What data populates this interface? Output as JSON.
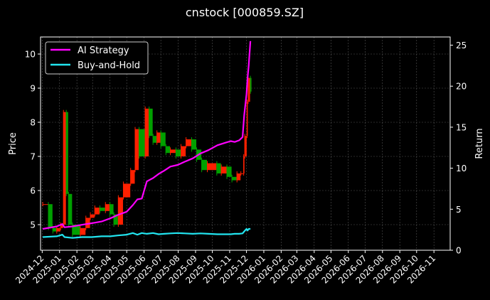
{
  "chart_data": {
    "type": "line",
    "title": "cnstock [000859.SZ]",
    "ylabel_left": "Price",
    "ylabel_right": "Return",
    "y_left_range": [
      4.25,
      10.5
    ],
    "y_right_range": [
      0,
      26
    ],
    "y_left_ticks": [
      5,
      6,
      7,
      8,
      9,
      10
    ],
    "y_right_ticks": [
      0,
      5,
      10,
      15,
      20,
      25
    ],
    "x_range": [
      "2024-11-28",
      "2026-11-30"
    ],
    "x_ticks": [
      "2024-12",
      "2025-01",
      "2025-02",
      "2025-03",
      "2025-04",
      "2025-05",
      "2025-06",
      "2025-07",
      "2025-08",
      "2025-09",
      "2025-10",
      "2025-11",
      "2025-12",
      "2026-01",
      "2026-02",
      "2026-03",
      "2026-04",
      "2026-05",
      "2026-06",
      "2026-07",
      "2026-08",
      "2026-09",
      "2026-10",
      "2026-11"
    ],
    "grid": true,
    "legend": {
      "position": "top-left",
      "entries": [
        "AI Strategy",
        "Buy-and-Hold"
      ]
    },
    "colors": {
      "background": "#000000",
      "ai": "#ff00ff",
      "bh": "#22e5f0",
      "candle_up": "#ff2000",
      "candle_down": "#00a000",
      "grid": "#555555",
      "text": "#ffffff"
    },
    "price_series": {
      "name": "",
      "x": [
        "2024-12-02",
        "2024-12-12",
        "2024-12-20",
        "2024-12-27",
        "2025-01-03",
        "2025-01-08",
        "2025-01-13",
        "2025-01-17",
        "2025-01-24",
        "2025-02-07",
        "2025-02-17",
        "2025-02-25",
        "2025-03-05",
        "2025-03-14",
        "2025-03-24",
        "2025-04-01",
        "2025-04-08",
        "2025-04-16",
        "2025-04-25",
        "2025-05-08",
        "2025-05-16",
        "2025-05-23",
        "2025-06-03",
        "2025-06-10",
        "2025-06-17",
        "2025-06-24",
        "2025-07-01",
        "2025-07-10",
        "2025-07-18",
        "2025-07-28",
        "2025-08-06",
        "2025-08-15",
        "2025-08-25",
        "2025-09-03",
        "2025-09-12",
        "2025-09-22",
        "2025-10-09",
        "2025-10-17",
        "2025-10-27",
        "2025-11-05",
        "2025-11-14",
        "2025-11-21",
        "2025-11-26",
        "2025-11-28",
        "2025-12-02",
        "2025-12-04",
        "2025-12-08"
      ],
      "values": [
        5.6,
        4.9,
        4.8,
        4.9,
        5.0,
        8.3,
        5.9,
        5.0,
        4.7,
        4.9,
        5.2,
        5.3,
        5.5,
        5.4,
        5.6,
        5.3,
        5.0,
        5.8,
        6.2,
        6.6,
        7.8,
        7.0,
        8.4,
        7.6,
        7.4,
        7.7,
        7.3,
        7.1,
        7.2,
        7.0,
        7.3,
        7.5,
        7.2,
        6.9,
        6.6,
        6.8,
        6.5,
        6.7,
        6.4,
        6.3,
        6.5,
        6.5,
        7.0,
        7.6,
        8.6,
        9.3,
        8.9
      ]
    },
    "series": [
      {
        "name": "AI Strategy",
        "x": [
          "2024-12-02",
          "2024-12-27",
          "2025-01-06",
          "2025-01-10",
          "2025-01-24",
          "2025-02-10",
          "2025-02-28",
          "2025-03-17",
          "2025-04-02",
          "2025-04-15",
          "2025-05-01",
          "2025-05-12",
          "2025-05-20",
          "2025-05-28",
          "2025-06-06",
          "2025-06-17",
          "2025-06-27",
          "2025-07-07",
          "2025-07-18",
          "2025-07-31",
          "2025-08-13",
          "2025-08-27",
          "2025-09-10",
          "2025-09-24",
          "2025-10-10",
          "2025-10-24",
          "2025-11-03",
          "2025-11-10",
          "2025-11-18",
          "2025-11-24",
          "2025-11-27",
          "2025-12-01",
          "2025-12-03",
          "2025-12-05",
          "2025-12-08"
        ],
        "values": [
          2.6,
          2.9,
          3.2,
          2.8,
          2.9,
          3.1,
          3.3,
          3.5,
          3.9,
          4.3,
          4.7,
          5.5,
          6.2,
          6.3,
          8.4,
          8.8,
          9.3,
          9.7,
          10.2,
          10.4,
          10.8,
          11.2,
          11.8,
          12.2,
          12.8,
          13.1,
          13.3,
          13.2,
          13.4,
          13.8,
          16.5,
          19.0,
          21.0,
          22.5,
          25.5
        ]
      },
      {
        "name": "Buy-and-Hold",
        "x": [
          "2024-12-02",
          "2024-12-27",
          "2025-01-06",
          "2025-01-10",
          "2025-01-24",
          "2025-02-10",
          "2025-02-28",
          "2025-03-17",
          "2025-04-02",
          "2025-04-15",
          "2025-05-01",
          "2025-05-12",
          "2025-05-20",
          "2025-05-28",
          "2025-06-06",
          "2025-06-17",
          "2025-06-27",
          "2025-07-07",
          "2025-07-18",
          "2025-07-31",
          "2025-08-13",
          "2025-08-27",
          "2025-09-10",
          "2025-09-24",
          "2025-10-10",
          "2025-10-24",
          "2025-11-03",
          "2025-11-10",
          "2025-11-18",
          "2025-11-24",
          "2025-11-27",
          "2025-12-01",
          "2025-12-03",
          "2025-12-05",
          "2025-12-08"
        ],
        "values": [
          1.6,
          1.7,
          1.9,
          1.6,
          1.5,
          1.6,
          1.6,
          1.7,
          1.7,
          1.8,
          1.9,
          2.1,
          1.9,
          2.1,
          2.0,
          2.1,
          1.95,
          2.0,
          2.05,
          2.1,
          2.05,
          2.0,
          2.05,
          2.0,
          1.95,
          1.95,
          1.95,
          2.0,
          2.0,
          2.05,
          2.3,
          2.6,
          2.4,
          2.6,
          2.6
        ]
      }
    ]
  }
}
